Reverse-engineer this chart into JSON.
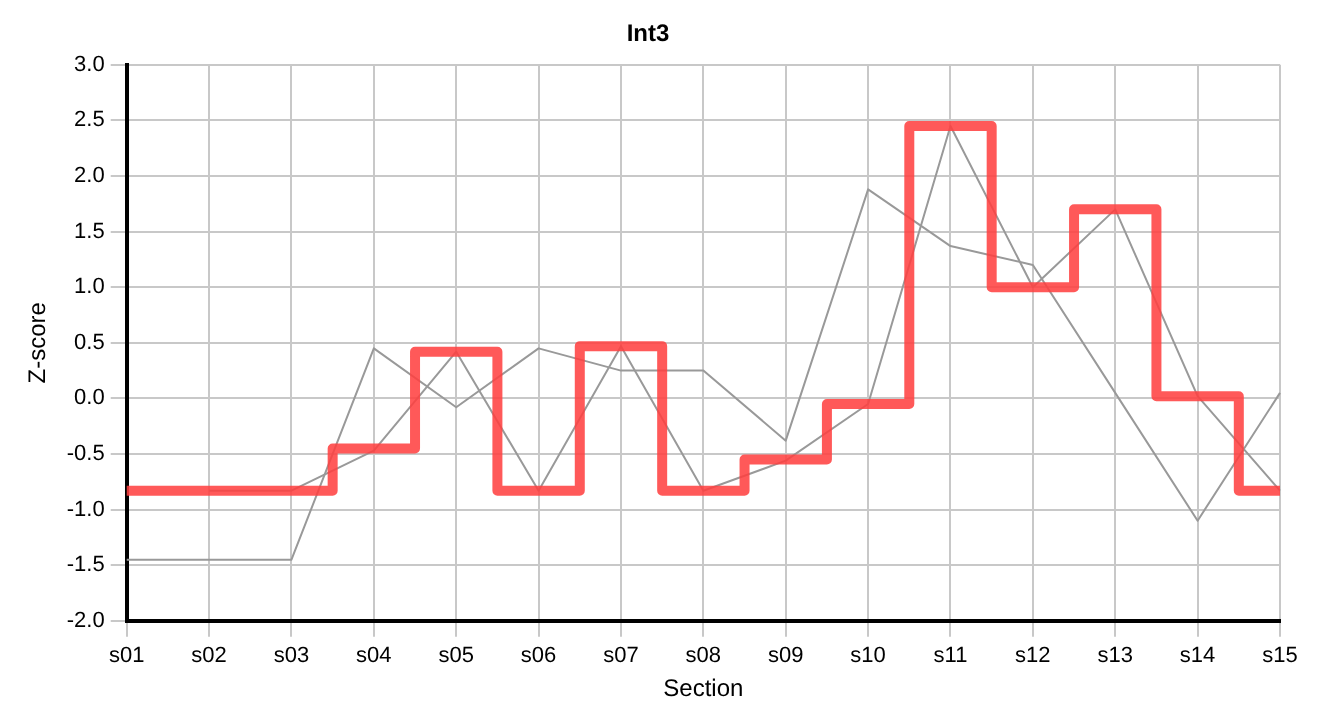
{
  "chart_data": {
    "type": "line",
    "title": "Int3",
    "xlabel": "Section",
    "ylabel": "Z-score",
    "categories": [
      "s01",
      "s02",
      "s03",
      "s04",
      "s05",
      "s06",
      "s07",
      "s08",
      "s09",
      "s10",
      "s11",
      "s12",
      "s13",
      "s14",
      "s15"
    ],
    "series": [
      {
        "type": "line",
        "color": "#999999",
        "values": [
          -1.45,
          -1.45,
          -1.45,
          0.45,
          -0.08,
          0.45,
          0.25,
          0.25,
          -0.38,
          1.88,
          1.37,
          1.2,
          0.05,
          -1.1,
          0.05
        ]
      },
      {
        "type": "line",
        "color": "#999999",
        "values": [
          null,
          -0.83,
          -0.83,
          -0.47,
          0.42,
          -0.83,
          0.47,
          -0.83,
          -0.56,
          -0.05,
          2.45,
          1.0,
          1.7,
          0.02,
          -0.83
        ]
      },
      {
        "type": "step",
        "color": "#ff4040",
        "values": [
          -0.83,
          -0.83,
          -0.83,
          -0.45,
          0.42,
          -0.83,
          0.47,
          -0.83,
          -0.55,
          -0.05,
          2.45,
          1.0,
          1.7,
          0.02,
          -0.83
        ]
      }
    ],
    "ylim": [
      -2,
      3
    ],
    "yticks": [
      {
        "value": -2,
        "label": "-2.0"
      },
      {
        "value": -1.5,
        "label": "-1.5"
      },
      {
        "value": -1,
        "label": "-1.0"
      },
      {
        "value": -0.5,
        "label": "-0.5"
      },
      {
        "value": 0,
        "label": "0.0"
      },
      {
        "value": 0.5,
        "label": "0.5"
      },
      {
        "value": 1,
        "label": "1.0"
      },
      {
        "value": 1.5,
        "label": "1.5"
      },
      {
        "value": 2,
        "label": "2.0"
      },
      {
        "value": 2.5,
        "label": "2.5"
      },
      {
        "value": 3,
        "label": "3.0"
      }
    ],
    "grid": true,
    "legend": false,
    "marker": "none",
    "line_style": "solid"
  }
}
